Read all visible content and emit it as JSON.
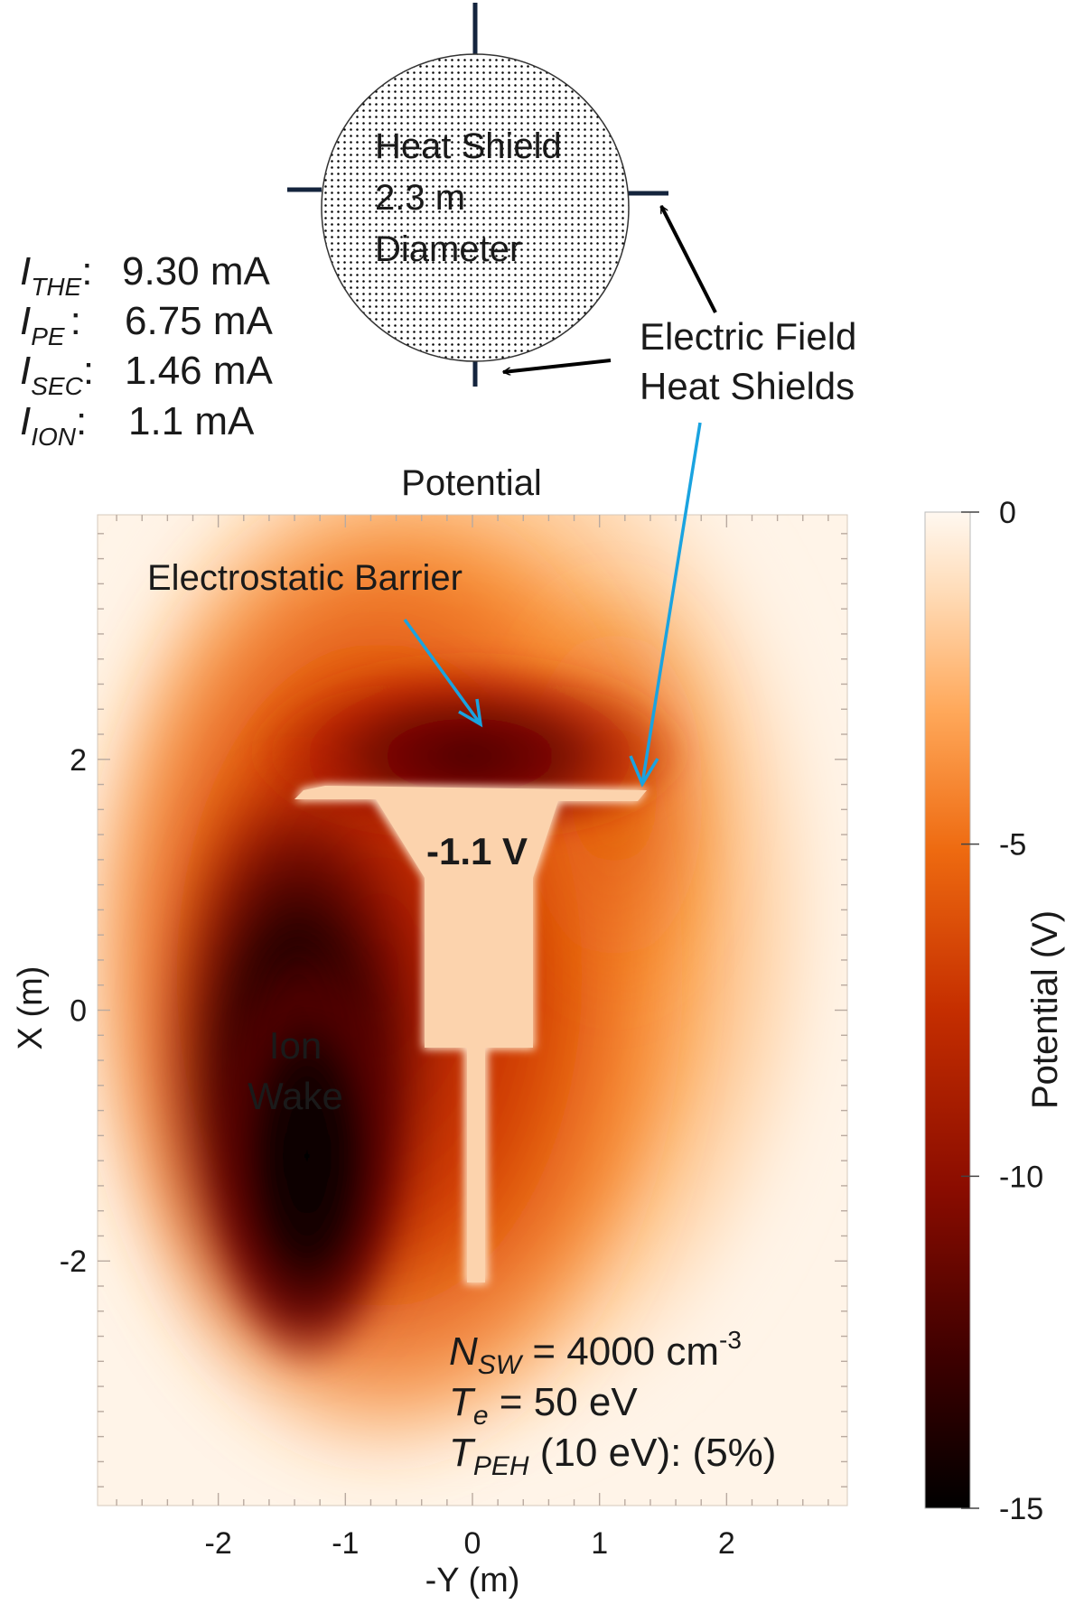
{
  "chart_data": {
    "type": "heatmap",
    "title": "Potential",
    "xlabel": "-Y (m)",
    "ylabel": "X (m)",
    "xlim": [
      -2.95,
      2.95
    ],
    "ylim": [
      -3.95,
      3.95
    ],
    "x_ticks": [
      "-2",
      "-1",
      "0",
      "1",
      "2"
    ],
    "y_ticks": [
      "2",
      "0",
      "-2"
    ],
    "colorbar": {
      "label": "Potential (V)",
      "range": [
        -15,
        0
      ],
      "ticks": [
        "0",
        "-5",
        "-10",
        "-15"
      ],
      "colors": [
        "#000000",
        "#5a0000",
        "#b31a00",
        "#e05a00",
        "#ff9a3a",
        "#ffd9b0",
        "#fff7ee"
      ]
    },
    "features": {
      "spacecraft_potential": "-1.1 V",
      "barrier_label": "Electrostatic Barrier",
      "wake_label": [
        "Ion",
        "Wake"
      ]
    },
    "currents": [
      {
        "symbol": "I",
        "sub": "THE",
        "sep": ":",
        "value": "9.30 mA"
      },
      {
        "symbol": "I",
        "sub": "PE",
        "sep": ":",
        "value": "6.75 mA"
      },
      {
        "symbol": "I",
        "sub": "SEC",
        "sep": ":",
        "value": "1.46 mA"
      },
      {
        "symbol": "I",
        "sub": "ION",
        "sep": ":",
        "value": "1.1 mA"
      }
    ],
    "plasma_params": {
      "nsw": {
        "sym": "N",
        "sub": "SW",
        "rest": " = 4000 cm",
        "sup": "-3"
      },
      "te": {
        "sym": "T",
        "sub": "e",
        "rest": " = 50 eV"
      },
      "tpeh": {
        "sym": "T",
        "sub": "PEH",
        "rest": " (10 eV): (5%)"
      }
    },
    "heat_shield": {
      "lines": [
        "Heat Shield",
        "2.3 m",
        "Diameter"
      ],
      "annotation": [
        "Electric Field",
        "Heat Shields"
      ]
    }
  }
}
